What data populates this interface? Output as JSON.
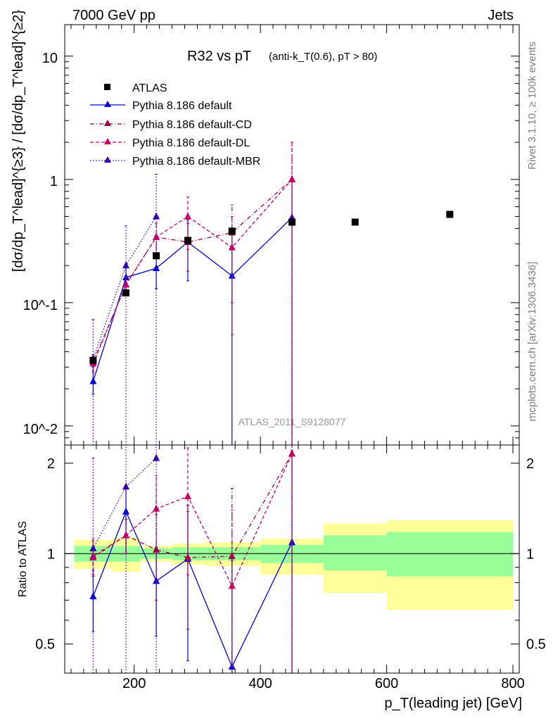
{
  "header": {
    "left": "7000 GeV pp",
    "right": "Jets",
    "side_top": "Rivet 3.1.10, ≥ 100k events",
    "side_bottom": "mcplots.cern.ch [arXiv:1306.3436]"
  },
  "colors": {
    "atlas": "#000000",
    "default": "#0000dd",
    "cd": "#990044",
    "dl": "#c80064",
    "mbr": "#3300aa",
    "band_inner": "#99ff99",
    "band_outer": "#ffff99"
  },
  "chart_data": [
    {
      "type": "scatter",
      "title": "R32 vs pT",
      "subtitle": "(anti-k_T(0.6), pT > 80)",
      "xlabel": "p_T(leading jet) [GeV]",
      "ylabel": "[dσ/dp_T^lead]^{≥3} / [dσ/dp_T^lead]^{≥2}",
      "yscale": "log",
      "xlim": [
        90,
        810
      ],
      "ylim": [
        0.007,
        18
      ],
      "watermark": "ATLAS_2011_S9128077",
      "ytick_labels": [
        "10^-2",
        "10^-1",
        "1",
        "10"
      ],
      "legend_position": "top-left",
      "series": [
        {
          "name": "ATLAS",
          "kind": "data",
          "points": [
            {
              "x": 135,
              "y": 0.034
            },
            {
              "x": 187,
              "y": 0.12
            },
            {
              "x": 235,
              "y": 0.24
            },
            {
              "x": 285,
              "y": 0.32
            },
            {
              "x": 355,
              "y": 0.38
            },
            {
              "x": 450,
              "y": 0.45
            },
            {
              "x": 550,
              "y": 0.45
            },
            {
              "x": 700,
              "y": 0.52
            }
          ]
        },
        {
          "name": "Pythia 8.186 default",
          "kind": "solid",
          "points": [
            {
              "x": 135,
              "y": 0.023,
              "lo": 0.018,
              "hi": 0.03
            },
            {
              "x": 187,
              "y": 0.16,
              "lo": 0.12,
              "hi": 0.2
            },
            {
              "x": 235,
              "y": 0.19,
              "lo": 0.13,
              "hi": 0.24
            },
            {
              "x": 285,
              "y": 0.31,
              "lo": 0.15,
              "hi": 0.47
            },
            {
              "x": 355,
              "y": 0.165,
              "lo": 0.001,
              "hi": 0.36
            },
            {
              "x": 450,
              "y": 0.49,
              "lo": 0.001,
              "hi": 0.99
            }
          ]
        },
        {
          "name": "Pythia 8.186 default-CD",
          "kind": "dashdot",
          "points": [
            {
              "x": 135,
              "y": 0.033,
              "lo": 0.028,
              "hi": 0.038
            },
            {
              "x": 187,
              "y": 0.14,
              "lo": 0.12,
              "hi": 0.16
            },
            {
              "x": 235,
              "y": 0.34,
              "lo": 0.24,
              "hi": 0.44
            },
            {
              "x": 285,
              "y": 0.31,
              "lo": 0.18,
              "hi": 0.44
            },
            {
              "x": 355,
              "y": 0.37,
              "lo": 0.1,
              "hi": 0.62
            },
            {
              "x": 450,
              "y": 1.0,
              "lo": 0.001,
              "hi": 2.0
            }
          ]
        },
        {
          "name": "Pythia 8.186 default-DL",
          "kind": "dashed",
          "points": [
            {
              "x": 135,
              "y": 0.032,
              "lo": 0.027,
              "hi": 0.037
            },
            {
              "x": 187,
              "y": 0.14,
              "lo": 0.12,
              "hi": 0.16
            },
            {
              "x": 235,
              "y": 0.34,
              "lo": 0.24,
              "hi": 0.44
            },
            {
              "x": 285,
              "y": 0.5,
              "lo": 0.27,
              "hi": 0.72
            },
            {
              "x": 355,
              "y": 0.28,
              "lo": 0.055,
              "hi": 0.5
            },
            {
              "x": 450,
              "y": 1.0,
              "lo": 0.001,
              "hi": 2.0
            }
          ]
        },
        {
          "name": "Pythia 8.186 default-MBR",
          "kind": "dotted",
          "points": [
            {
              "x": 135,
              "y": 0.035,
              "lo": 0.001,
              "hi": 0.073
            },
            {
              "x": 187,
              "y": 0.2,
              "lo": 0.001,
              "hi": 0.42
            },
            {
              "x": 235,
              "y": 0.5,
              "lo": 0.001,
              "hi": 1.1
            }
          ]
        }
      ]
    },
    {
      "type": "scatter",
      "ylabel": "Ratio to ATLAS",
      "xlabel": "p_T(leading jet) [GeV]",
      "yscale": "log",
      "xlim": [
        90,
        810
      ],
      "ylim": [
        0.4,
        2.3
      ],
      "x_ticks": [
        200,
        400,
        600,
        800
      ],
      "y_ticks": [
        0.5,
        1,
        2
      ],
      "reference_line": 1,
      "bands": [
        {
          "x0": 105,
          "x1": 165,
          "inner": [
            0.94,
            1.06
          ],
          "outer": [
            0.89,
            1.11
          ]
        },
        {
          "x0": 165,
          "x1": 210,
          "inner": [
            0.94,
            1.06
          ],
          "outer": [
            0.87,
            1.13
          ]
        },
        {
          "x0": 210,
          "x1": 260,
          "inner": [
            0.96,
            1.04
          ],
          "outer": [
            0.94,
            1.06
          ]
        },
        {
          "x0": 260,
          "x1": 310,
          "inner": [
            0.95,
            1.05
          ],
          "outer": [
            0.92,
            1.08
          ]
        },
        {
          "x0": 310,
          "x1": 400,
          "inner": [
            0.95,
            1.05
          ],
          "outer": [
            0.91,
            1.09
          ]
        },
        {
          "x0": 400,
          "x1": 500,
          "inner": [
            0.93,
            1.07
          ],
          "outer": [
            0.85,
            1.12
          ]
        },
        {
          "x0": 500,
          "x1": 600,
          "inner": [
            0.88,
            1.15
          ],
          "outer": [
            0.74,
            1.26
          ]
        },
        {
          "x0": 600,
          "x1": 800,
          "inner": [
            0.84,
            1.18
          ],
          "outer": [
            0.65,
            1.29
          ]
        }
      ],
      "series": [
        {
          "name": "Pythia 8.186 default",
          "kind": "solid",
          "points": [
            {
              "x": 135,
              "y": 0.72,
              "lo": 0.55,
              "hi": 0.88
            },
            {
              "x": 187,
              "y": 1.38,
              "lo": 1.0,
              "hi": 1.65
            },
            {
              "x": 235,
              "y": 0.81,
              "lo": 0.53,
              "hi": 1.05
            },
            {
              "x": 285,
              "y": 0.96,
              "lo": 0.44,
              "hi": 1.45
            },
            {
              "x": 355,
              "y": 0.42,
              "lo": 0.001,
              "hi": 0.95
            },
            {
              "x": 450,
              "y": 1.09,
              "lo": 0.001,
              "hi": 2.2
            }
          ]
        },
        {
          "name": "Pythia 8.186 default-CD",
          "kind": "dashdot",
          "points": [
            {
              "x": 135,
              "y": 0.98,
              "lo": 0.85,
              "hi": 1.12
            },
            {
              "x": 187,
              "y": 1.15,
              "lo": 1.0,
              "hi": 1.3
            },
            {
              "x": 235,
              "y": 1.03,
              "lo": 0.7,
              "hi": 1.35
            },
            {
              "x": 285,
              "y": 0.97,
              "lo": 0.56,
              "hi": 1.38
            },
            {
              "x": 355,
              "y": 0.98,
              "lo": 0.001,
              "hi": 1.65
            },
            {
              "x": 450,
              "y": 2.15,
              "lo": 0.001,
              "hi": 4.0
            }
          ]
        },
        {
          "name": "Pythia 8.186 default-DL",
          "kind": "dashed",
          "points": [
            {
              "x": 135,
              "y": 0.97,
              "lo": 0.84,
              "hi": 1.1
            },
            {
              "x": 187,
              "y": 1.15,
              "lo": 1.0,
              "hi": 1.3
            },
            {
              "x": 235,
              "y": 1.41,
              "lo": 1.0,
              "hi": 1.82
            },
            {
              "x": 285,
              "y": 1.55,
              "lo": 0.85,
              "hi": 2.25
            },
            {
              "x": 355,
              "y": 0.78,
              "lo": 0.15,
              "hi": 1.4
            },
            {
              "x": 450,
              "y": 2.15,
              "lo": 0.001,
              "hi": 4.0
            }
          ]
        },
        {
          "name": "Pythia 8.186 default-MBR",
          "kind": "dotted",
          "points": [
            {
              "x": 135,
              "y": 1.04,
              "lo": 0.001,
              "hi": 2.08
            },
            {
              "x": 187,
              "y": 1.67,
              "lo": 0.001,
              "hi": 3.5
            },
            {
              "x": 235,
              "y": 2.08,
              "lo": 0.001,
              "hi": 4.6
            }
          ]
        }
      ]
    }
  ]
}
